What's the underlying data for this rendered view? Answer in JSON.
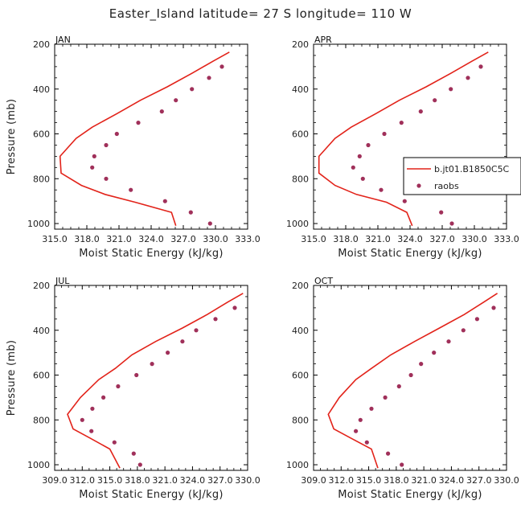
{
  "figure": {
    "title": "Easter_Island  latitude= 27 S longitude= 110 W"
  },
  "colors": {
    "model": "#e2231a",
    "obs": "#a0305a",
    "axis": "#000000"
  },
  "legend": {
    "model_label": "b.jt01.B1850C5C",
    "obs_label": "raobs",
    "placement": "right of APR panel"
  },
  "chart_data": [
    {
      "type": "line",
      "panel_label": "JAN",
      "xlabel": "Moist Static Energy (kJ/kg)",
      "ylabel": "Pressure (mb)",
      "xlim": [
        315.0,
        333.0
      ],
      "ylim": [
        1025,
        200
      ],
      "xticks": [
        "315.0",
        "318.0",
        "321.0",
        "324.0",
        "327.0",
        "330.0",
        "333.0"
      ],
      "yticks": [
        "200",
        "400",
        "600",
        "800",
        "1000"
      ],
      "series": [
        {
          "name": "b.jt01.B1850C5C",
          "kind": "line",
          "x": [
            331.3,
            329.8,
            327.8,
            325.5,
            323.0,
            320.8,
            318.5,
            317.0,
            315.5,
            315.6,
            317.5,
            319.7,
            322.5,
            325.9,
            326.3
          ],
          "y": [
            235,
            275,
            330,
            390,
            450,
            510,
            570,
            620,
            700,
            775,
            830,
            870,
            905,
            950,
            1010
          ]
        },
        {
          "name": "raobs",
          "kind": "scatter",
          "x": [
            330.6,
            329.4,
            327.8,
            326.3,
            325.0,
            322.8,
            320.8,
            319.8,
            318.7,
            318.5,
            319.8,
            322.1,
            325.3,
            327.7,
            329.5
          ],
          "y": [
            300,
            350,
            400,
            450,
            500,
            550,
            600,
            650,
            700,
            750,
            800,
            850,
            900,
            950,
            1000
          ]
        }
      ]
    },
    {
      "type": "line",
      "panel_label": "APR",
      "xlabel": "Moist Static Energy (kJ/kg)",
      "ylabel": "",
      "xlim": [
        315.0,
        333.0
      ],
      "ylim": [
        1025,
        200
      ],
      "xticks": [
        "315.0",
        "318.0",
        "321.0",
        "324.0",
        "327.0",
        "330.0",
        "333.0"
      ],
      "yticks": [
        "200",
        "400",
        "600",
        "800",
        "1000"
      ],
      "series": [
        {
          "name": "b.jt01.B1850C5C",
          "kind": "line",
          "x": [
            331.3,
            329.8,
            327.8,
            325.5,
            323.0,
            320.8,
            318.5,
            317.0,
            315.5,
            315.5,
            317.0,
            319.0,
            321.8,
            323.7,
            324.2
          ],
          "y": [
            235,
            275,
            330,
            390,
            450,
            510,
            570,
            620,
            700,
            775,
            830,
            870,
            905,
            950,
            1010
          ]
        },
        {
          "name": "raobs",
          "kind": "scatter",
          "x": [
            330.6,
            329.4,
            327.8,
            326.3,
            325.0,
            323.2,
            321.6,
            320.1,
            319.3,
            318.7,
            319.6,
            321.3,
            323.5,
            326.9,
            327.9
          ],
          "y": [
            300,
            350,
            400,
            450,
            500,
            550,
            600,
            650,
            700,
            750,
            800,
            850,
            900,
            950,
            1000
          ]
        }
      ]
    },
    {
      "type": "line",
      "panel_label": "JUL",
      "xlabel": "Moist Static Energy (kJ/kg)",
      "ylabel": "Pressure (mb)",
      "xlim": [
        309.0,
        330.0
      ],
      "ylim": [
        1025,
        200
      ],
      "xticks": [
        "309.0",
        "312.0",
        "315.0",
        "318.0",
        "321.0",
        "324.0",
        "327.0",
        "330.0"
      ],
      "yticks": [
        "200",
        "400",
        "600",
        "800",
        "1000"
      ],
      "series": [
        {
          "name": "b.jt01.B1850C5C",
          "kind": "line",
          "x": [
            329.5,
            327.8,
            325.6,
            322.9,
            320.0,
            317.4,
            315.6,
            313.8,
            311.8,
            310.4,
            311.0,
            312.8,
            315.0,
            316.1
          ],
          "y": [
            235,
            275,
            330,
            390,
            450,
            510,
            570,
            620,
            700,
            775,
            840,
            880,
            930,
            1015
          ]
        },
        {
          "name": "raobs",
          "kind": "scatter",
          "x": [
            328.6,
            326.5,
            324.4,
            322.9,
            321.3,
            319.6,
            317.9,
            315.9,
            314.3,
            313.1,
            312.0,
            313.0,
            315.5,
            317.6,
            318.3
          ],
          "y": [
            300,
            350,
            400,
            450,
            500,
            550,
            600,
            650,
            700,
            750,
            800,
            850,
            900,
            950,
            1000
          ]
        }
      ]
    },
    {
      "type": "line",
      "panel_label": "OCT",
      "xlabel": "Moist Static Energy (kJ/kg)",
      "ylabel": "",
      "xlim": [
        309.0,
        330.0
      ],
      "ylim": [
        1025,
        200
      ],
      "xticks": [
        "309.0",
        "312.0",
        "315.0",
        "318.0",
        "321.0",
        "324.0",
        "327.0",
        "330.0"
      ],
      "yticks": [
        "200",
        "400",
        "600",
        "800",
        "1000"
      ],
      "series": [
        {
          "name": "b.jt01.B1850C5C",
          "kind": "line",
          "x": [
            329.0,
            327.5,
            325.4,
            322.7,
            320.0,
            317.4,
            315.3,
            313.6,
            311.8,
            310.6,
            311.2,
            313.0,
            315.3,
            316.0
          ],
          "y": [
            235,
            275,
            330,
            390,
            450,
            510,
            570,
            620,
            700,
            775,
            840,
            880,
            930,
            1015
          ]
        },
        {
          "name": "raobs",
          "kind": "scatter",
          "x": [
            328.6,
            326.8,
            325.3,
            323.7,
            322.1,
            320.7,
            319.6,
            318.3,
            316.8,
            315.3,
            314.1,
            313.6,
            314.8,
            317.1,
            318.6
          ],
          "y": [
            300,
            350,
            400,
            450,
            500,
            550,
            600,
            650,
            700,
            750,
            800,
            850,
            900,
            950,
            1000
          ]
        }
      ]
    }
  ]
}
